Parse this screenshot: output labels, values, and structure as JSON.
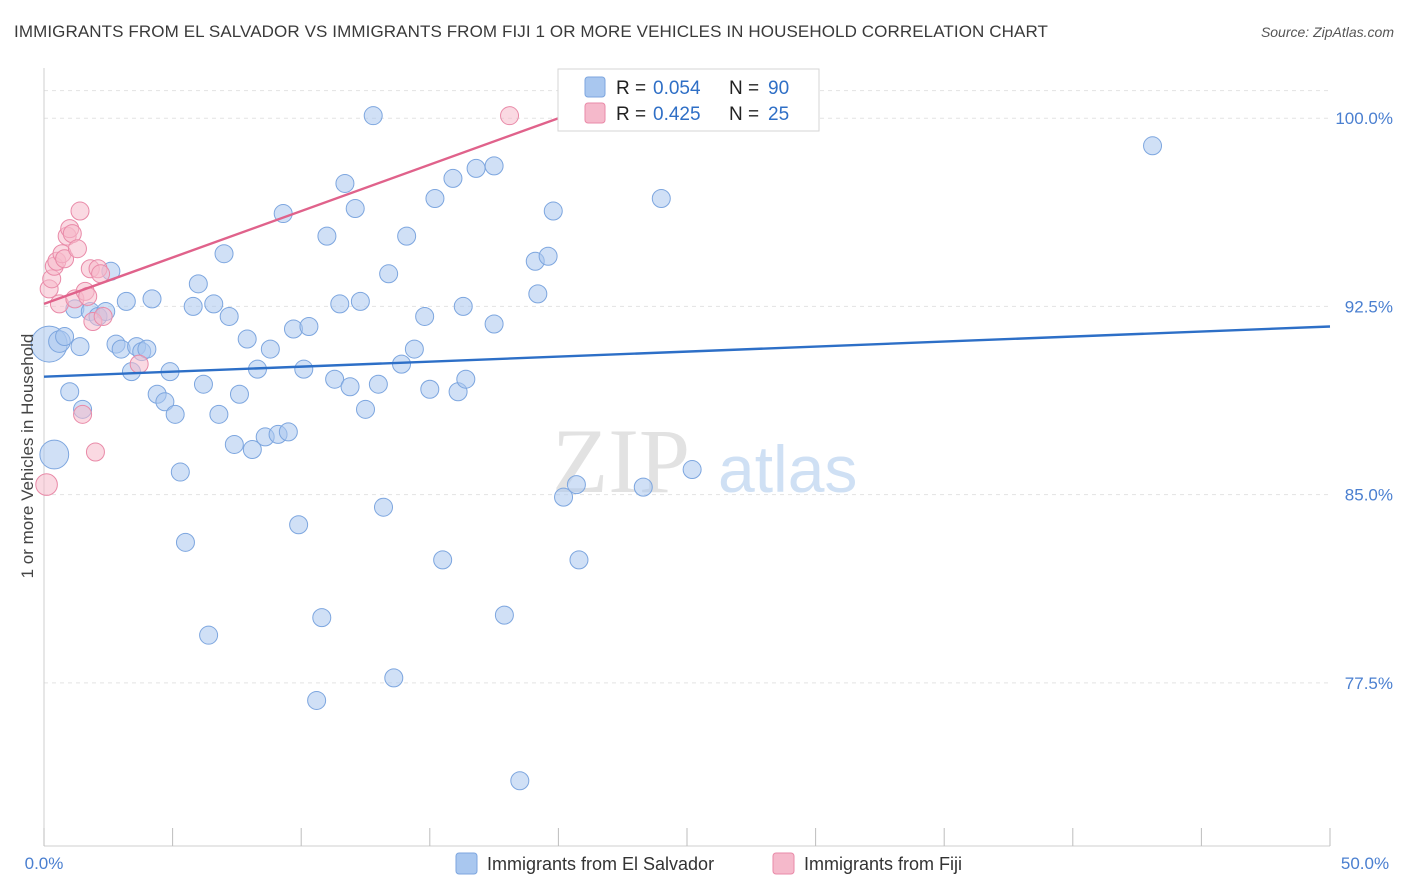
{
  "chart_data": {
    "type": "scatter",
    "title": "IMMIGRANTS FROM EL SALVADOR VS IMMIGRANTS FROM FIJI 1 OR MORE VEHICLES IN HOUSEHOLD CORRELATION CHART",
    "source": "Source: ZipAtlas.com",
    "ylabel": "1 or more Vehicles in Household",
    "xlim": [
      0,
      50
    ],
    "ylim": [
      71,
      102
    ],
    "x_ticks": [
      "0.0%",
      "50.0%"
    ],
    "y_ticks": [
      {
        "value": 100,
        "label": "100.0%"
      },
      {
        "value": 92.5,
        "label": "92.5%"
      },
      {
        "value": 85,
        "label": "85.0%"
      },
      {
        "value": 77.5,
        "label": "77.5%"
      }
    ],
    "watermark": {
      "zip": "ZIP",
      "atlas": "atlas"
    },
    "legend": {
      "r_label": "R =",
      "n_label": "N =",
      "rows": [
        {
          "r": "0.054",
          "n": "90"
        },
        {
          "r": "0.425",
          "n": "25"
        }
      ]
    },
    "series": [
      {
        "name": "Immigrants from El Salvador",
        "color": "#a9c7ef",
        "stroke": "#7da6df",
        "trend": {
          "x0": 0,
          "y0": 89.7,
          "x1": 50,
          "y1": 91.7,
          "color": "#2d6fc7"
        },
        "points": [
          [
            0.2,
            91.0,
            2.0
          ],
          [
            0.4,
            86.6,
            1.6
          ],
          [
            0.6,
            91.1,
            1.2
          ],
          [
            0.8,
            91.3,
            1.0
          ],
          [
            1.0,
            89.1,
            1.0
          ],
          [
            1.2,
            92.4,
            1.0
          ],
          [
            1.4,
            90.9,
            1.0
          ],
          [
            1.5,
            88.4,
            1.0
          ],
          [
            1.8,
            92.3,
            1.0
          ],
          [
            2.1,
            92.1,
            1.0
          ],
          [
            2.4,
            92.3,
            1.0
          ],
          [
            2.6,
            93.9,
            1.0
          ],
          [
            2.8,
            91.0,
            1.0
          ],
          [
            3.0,
            90.8,
            1.0
          ],
          [
            3.2,
            92.7,
            1.0
          ],
          [
            3.4,
            89.9,
            1.0
          ],
          [
            3.6,
            90.9,
            1.0
          ],
          [
            3.8,
            90.7,
            1.0
          ],
          [
            4.0,
            90.8,
            1.0
          ],
          [
            4.2,
            92.8,
            1.0
          ],
          [
            4.4,
            89.0,
            1.0
          ],
          [
            4.7,
            88.7,
            1.0
          ],
          [
            4.9,
            89.9,
            1.0
          ],
          [
            5.1,
            88.2,
            1.0
          ],
          [
            5.3,
            85.9,
            1.0
          ],
          [
            5.5,
            83.1,
            1.0
          ],
          [
            5.8,
            92.5,
            1.0
          ],
          [
            6.0,
            93.4,
            1.0
          ],
          [
            6.2,
            89.4,
            1.0
          ],
          [
            6.4,
            79.4,
            1.0
          ],
          [
            6.6,
            92.6,
            1.0
          ],
          [
            6.8,
            88.2,
            1.0
          ],
          [
            7.0,
            94.6,
            1.0
          ],
          [
            7.2,
            92.1,
            1.0
          ],
          [
            7.4,
            87.0,
            1.0
          ],
          [
            7.6,
            89.0,
            1.0
          ],
          [
            7.9,
            91.2,
            1.0
          ],
          [
            8.1,
            86.8,
            1.0
          ],
          [
            8.3,
            90.0,
            1.0
          ],
          [
            8.6,
            87.3,
            1.0
          ],
          [
            8.8,
            90.8,
            1.0
          ],
          [
            9.1,
            87.4,
            1.0
          ],
          [
            9.3,
            96.2,
            1.0
          ],
          [
            9.5,
            87.5,
            1.0
          ],
          [
            9.7,
            91.6,
            1.0
          ],
          [
            9.9,
            83.8,
            1.0
          ],
          [
            10.1,
            90.0,
            1.0
          ],
          [
            10.3,
            91.7,
            1.0
          ],
          [
            10.6,
            76.8,
            1.0
          ],
          [
            10.8,
            80.1,
            1.0
          ],
          [
            11.0,
            95.3,
            1.0
          ],
          [
            11.3,
            89.6,
            1.0
          ],
          [
            11.5,
            92.6,
            1.0
          ],
          [
            11.7,
            97.4,
            1.0
          ],
          [
            11.9,
            89.3,
            1.0
          ],
          [
            12.1,
            96.4,
            1.0
          ],
          [
            12.3,
            92.7,
            1.0
          ],
          [
            12.5,
            88.4,
            1.0
          ],
          [
            12.8,
            100.1,
            1.0
          ],
          [
            13.0,
            89.4,
            1.0
          ],
          [
            13.2,
            84.5,
            1.0
          ],
          [
            13.4,
            93.8,
            1.0
          ],
          [
            13.6,
            77.7,
            1.0
          ],
          [
            13.9,
            90.2,
            1.0
          ],
          [
            14.1,
            95.3,
            1.0
          ],
          [
            14.4,
            90.8,
            1.0
          ],
          [
            14.8,
            92.1,
            1.0
          ],
          [
            15.0,
            89.2,
            1.0
          ],
          [
            15.2,
            96.8,
            1.0
          ],
          [
            15.5,
            82.4,
            1.0
          ],
          [
            15.9,
            97.6,
            1.0
          ],
          [
            16.1,
            89.1,
            1.0
          ],
          [
            16.3,
            92.5,
            1.0
          ],
          [
            16.4,
            89.6,
            1.0
          ],
          [
            16.8,
            98.0,
            1.0
          ],
          [
            17.5,
            91.8,
            1.0
          ],
          [
            17.5,
            98.1,
            1.0
          ],
          [
            17.9,
            80.2,
            1.0
          ],
          [
            18.5,
            73.6,
            1.0
          ],
          [
            19.1,
            94.3,
            1.0
          ],
          [
            19.2,
            93.0,
            1.0
          ],
          [
            19.6,
            94.5,
            1.0
          ],
          [
            19.8,
            96.3,
            1.0
          ],
          [
            20.2,
            84.9,
            1.0
          ],
          [
            20.7,
            85.4,
            1.0
          ],
          [
            20.8,
            82.4,
            1.0
          ],
          [
            23.3,
            85.3,
            1.0
          ],
          [
            24.0,
            96.8,
            1.0
          ],
          [
            25.2,
            86.0,
            1.0
          ],
          [
            43.1,
            98.9,
            1.0
          ]
        ]
      },
      {
        "name": "Immigrants from Fiji",
        "color": "#f5b9cb",
        "stroke": "#e98aa8",
        "trend": {
          "x0": 0,
          "y0": 92.6,
          "x1": 20,
          "y1": 100.0,
          "color": "#e0628b"
        },
        "points": [
          [
            0.1,
            85.4,
            1.2
          ],
          [
            0.2,
            93.2,
            1.0
          ],
          [
            0.3,
            93.6,
            1.0
          ],
          [
            0.4,
            94.1,
            1.0
          ],
          [
            0.5,
            94.3,
            1.0
          ],
          [
            0.6,
            92.6,
            1.0
          ],
          [
            0.7,
            94.6,
            1.0
          ],
          [
            0.8,
            94.4,
            1.0
          ],
          [
            0.9,
            95.3,
            1.0
          ],
          [
            1.0,
            95.6,
            1.0
          ],
          [
            1.1,
            95.4,
            1.0
          ],
          [
            1.2,
            92.8,
            1.0
          ],
          [
            1.3,
            94.8,
            1.0
          ],
          [
            1.4,
            96.3,
            1.0
          ],
          [
            1.5,
            88.2,
            1.0
          ],
          [
            1.6,
            93.1,
            1.0
          ],
          [
            1.7,
            92.9,
            1.0
          ],
          [
            1.8,
            94.0,
            1.0
          ],
          [
            1.9,
            91.9,
            1.0
          ],
          [
            2.0,
            86.7,
            1.0
          ],
          [
            2.1,
            94.0,
            1.0
          ],
          [
            2.2,
            93.8,
            1.0
          ],
          [
            2.3,
            92.1,
            1.0
          ],
          [
            3.7,
            90.2,
            1.0
          ],
          [
            18.1,
            100.1,
            1.0
          ]
        ]
      }
    ]
  }
}
